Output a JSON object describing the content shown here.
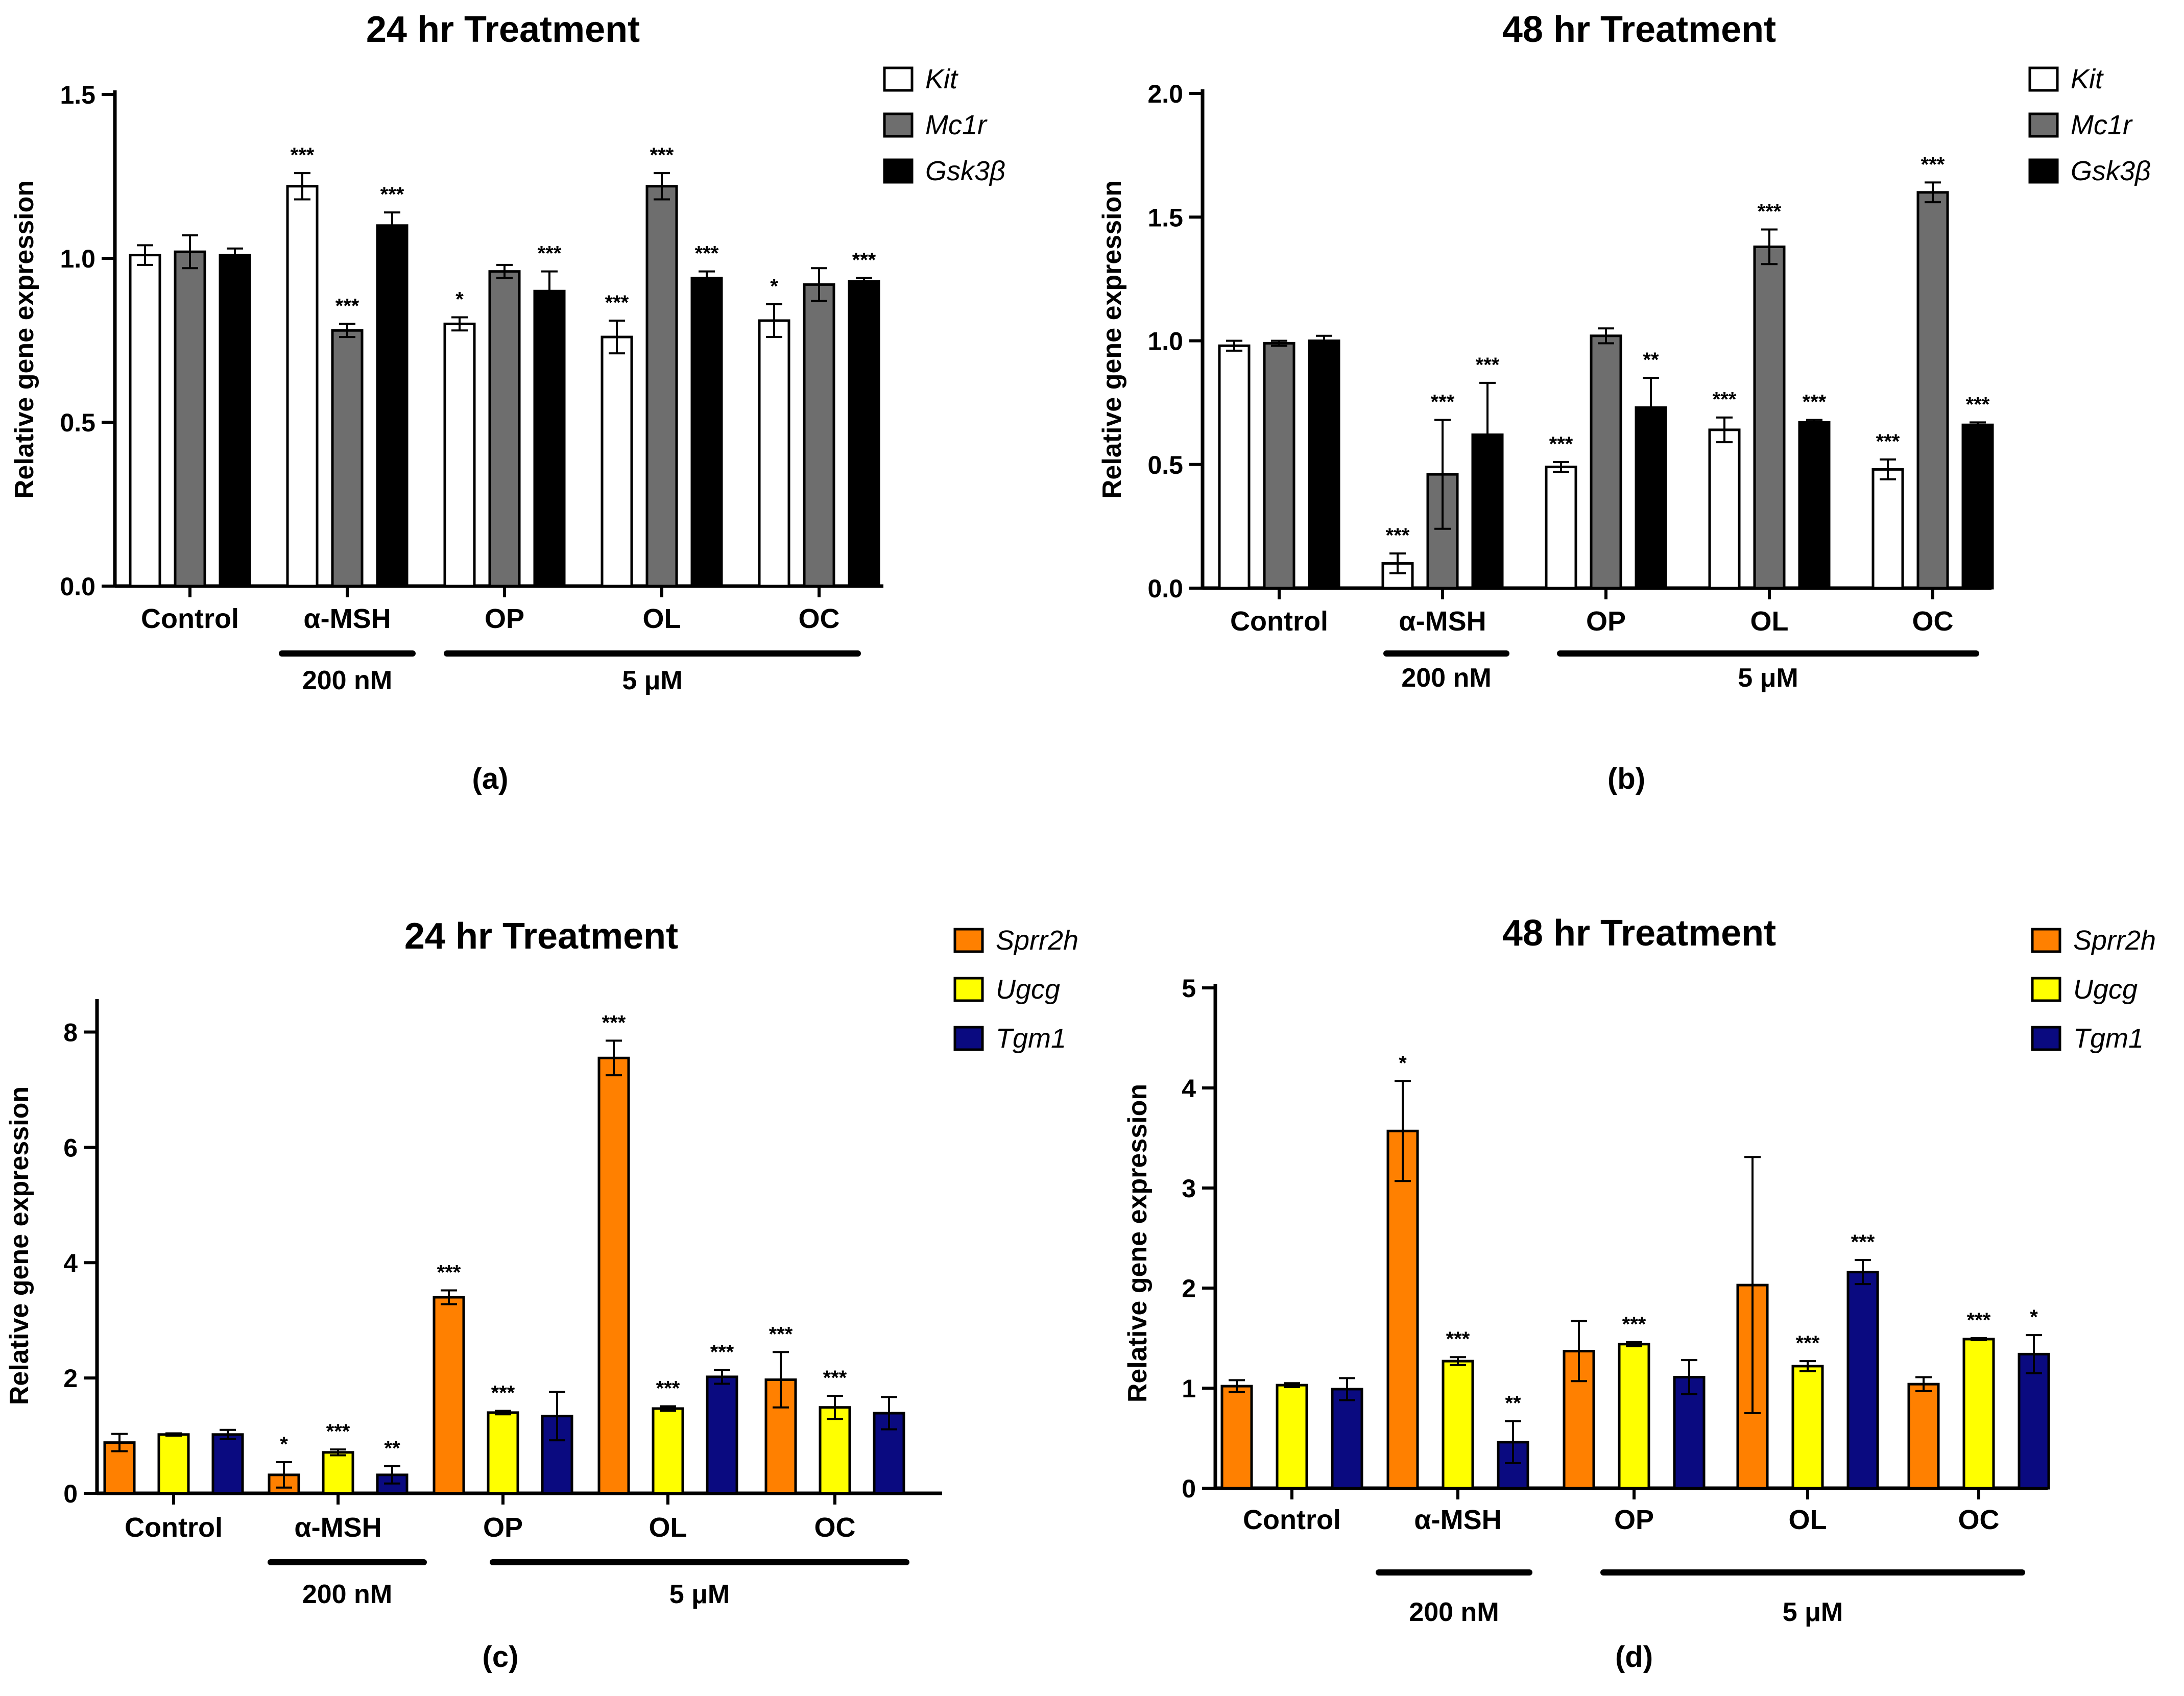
{
  "chart_data": [
    {
      "type": "bar",
      "panel_label": "(a)",
      "title": "24 hr Treatment",
      "ylabel": "Relative gene expression",
      "ylim": [
        0,
        1.5
      ],
      "yticks": [
        "0.0",
        "0.5",
        "1.0",
        "1.5"
      ],
      "categories": [
        "Control",
        "α-MSH",
        "OP",
        "OL",
        "OC"
      ],
      "groups": [
        {
          "label": "200 nM",
          "categories": [
            "α-MSH"
          ]
        },
        {
          "label": "5 μM",
          "categories": [
            "OP",
            "OL",
            "OC"
          ]
        }
      ],
      "series": [
        {
          "name": "Kit",
          "color": "#ffffff",
          "values": [
            1.01,
            1.22,
            0.8,
            0.76,
            0.81
          ],
          "errors": [
            0.03,
            0.04,
            0.02,
            0.05,
            0.05
          ],
          "stars": [
            "",
            "***",
            "*",
            "***",
            "*"
          ]
        },
        {
          "name": "Mc1r",
          "color": "#6e6e6e",
          "values": [
            1.02,
            0.78,
            0.96,
            1.22,
            0.92
          ],
          "errors": [
            0.05,
            0.02,
            0.02,
            0.04,
            0.05
          ],
          "stars": [
            "",
            "***",
            "",
            "***",
            ""
          ]
        },
        {
          "name": "Gsk3β",
          "color": "#000000",
          "values": [
            1.01,
            1.1,
            0.9,
            0.94,
            0.93
          ],
          "errors": [
            0.02,
            0.04,
            0.06,
            0.02,
            0.01
          ],
          "stars": [
            "",
            "***",
            "***",
            "***",
            "***"
          ]
        }
      ],
      "legend": "top-right"
    },
    {
      "type": "bar",
      "panel_label": "(b)",
      "title": "48 hr Treatment",
      "ylabel": "Relative gene expression",
      "ylim": [
        0,
        2.0
      ],
      "yticks": [
        "0.0",
        "0.5",
        "1.0",
        "1.5",
        "2.0"
      ],
      "categories": [
        "Control",
        "α-MSH",
        "OP",
        "OL",
        "OC"
      ],
      "groups": [
        {
          "label": "200 nM",
          "categories": [
            "α-MSH"
          ]
        },
        {
          "label": "5 μM",
          "categories": [
            "OP",
            "OL",
            "OC"
          ]
        }
      ],
      "series": [
        {
          "name": "Kit",
          "color": "#ffffff",
          "values": [
            0.98,
            0.1,
            0.49,
            0.64,
            0.48
          ],
          "errors": [
            0.02,
            0.04,
            0.02,
            0.05,
            0.04
          ],
          "stars": [
            "",
            "***",
            "***",
            "***",
            "***"
          ]
        },
        {
          "name": "Mc1r",
          "color": "#6e6e6e",
          "values": [
            0.99,
            0.46,
            1.02,
            1.38,
            1.6
          ],
          "errors": [
            0.01,
            0.22,
            0.03,
            0.07,
            0.04
          ],
          "stars": [
            "",
            "***",
            "",
            "***",
            "***"
          ]
        },
        {
          "name": "Gsk3β",
          "color": "#000000",
          "values": [
            1.0,
            0.62,
            0.73,
            0.67,
            0.66
          ],
          "errors": [
            0.02,
            0.21,
            0.12,
            0.01,
            0.01
          ],
          "stars": [
            "",
            "***",
            "**",
            "***",
            "***"
          ]
        }
      ],
      "legend": "top-right"
    },
    {
      "type": "bar",
      "panel_label": "(c)",
      "title": "24 hr Treatment",
      "ylabel": "Relative gene expression",
      "ylim": [
        0,
        8.5
      ],
      "yticks": [
        "0",
        "2",
        "4",
        "6",
        "8"
      ],
      "ytick_values": [
        0,
        2,
        4,
        6,
        8
      ],
      "categories": [
        "Control",
        "α-MSH",
        "OP",
        "OL",
        "OC"
      ],
      "groups": [
        {
          "label": "200 nM",
          "categories": [
            "α-MSH"
          ]
        },
        {
          "label": "5 μM",
          "categories": [
            "OP",
            "OL",
            "OC"
          ]
        }
      ],
      "series": [
        {
          "name": "Sprr2h",
          "color": "#ff8000",
          "values": [
            0.88,
            0.32,
            3.4,
            7.55,
            1.97
          ],
          "errors": [
            0.15,
            0.22,
            0.12,
            0.3,
            0.48
          ],
          "stars": [
            "",
            "*",
            "***",
            "***",
            "***"
          ]
        },
        {
          "name": "Ugcg",
          "color": "#ffff00",
          "values": [
            1.02,
            0.71,
            1.4,
            1.47,
            1.49
          ],
          "errors": [
            0.02,
            0.05,
            0.03,
            0.04,
            0.2
          ],
          "stars": [
            "",
            "***",
            "***",
            "***",
            "***"
          ]
        },
        {
          "name": "Tgm1",
          "color": "#0a0a80",
          "values": [
            1.02,
            0.32,
            1.34,
            2.02,
            1.39
          ],
          "errors": [
            0.08,
            0.15,
            0.42,
            0.12,
            0.28
          ],
          "stars": [
            "",
            "**",
            "",
            "***",
            ""
          ]
        }
      ],
      "legend": "top-right"
    },
    {
      "type": "bar",
      "panel_label": "(d)",
      "title": "48 hr Treatment",
      "ylabel": "Relative gene expression",
      "ylim": [
        0,
        5
      ],
      "yticks": [
        "0",
        "1",
        "2",
        "3",
        "4",
        "5"
      ],
      "categories": [
        "Control",
        "α-MSH",
        "OP",
        "OL",
        "OC"
      ],
      "groups": [
        {
          "label": "200 nM",
          "categories": [
            "α-MSH"
          ]
        },
        {
          "label": "5 μM",
          "categories": [
            "OP",
            "OL",
            "OC"
          ]
        }
      ],
      "series": [
        {
          "name": "Sprr2h",
          "color": "#ff8000",
          "values": [
            1.02,
            3.57,
            1.37,
            2.03,
            1.04
          ],
          "errors": [
            0.06,
            0.5,
            0.3,
            1.28,
            0.07
          ],
          "stars": [
            "",
            "*",
            "",
            "",
            ""
          ]
        },
        {
          "name": "Ugcg",
          "color": "#ffff00",
          "values": [
            1.03,
            1.27,
            1.44,
            1.22,
            1.49
          ],
          "errors": [
            0.02,
            0.04,
            0.02,
            0.05,
            0.01
          ],
          "stars": [
            "",
            "***",
            "***",
            "***",
            "***"
          ]
        },
        {
          "name": "Tgm1",
          "color": "#0a0a80",
          "values": [
            0.99,
            0.46,
            1.11,
            2.16,
            1.34
          ],
          "errors": [
            0.11,
            0.21,
            0.17,
            0.12,
            0.19
          ],
          "stars": [
            "",
            "**",
            "",
            "***",
            "*"
          ]
        }
      ],
      "legend": "top-right"
    }
  ]
}
